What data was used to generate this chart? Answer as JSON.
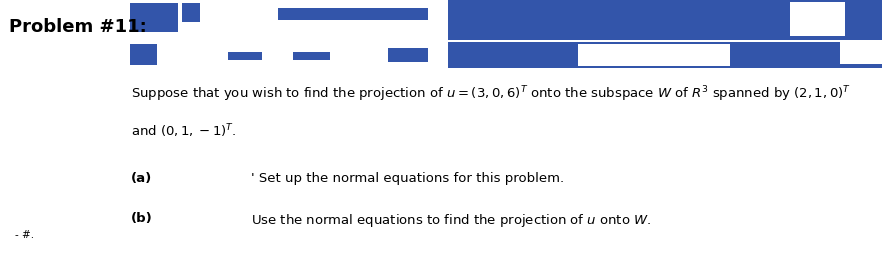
{
  "title": "Problem #11:",
  "background_color": "#ffffff",
  "header_bg_color": "#3355aa",
  "main_text_line1": "Suppose that you wish to find the projection of $u = (3,0,6)^T$ onto the subspace $W$ of $R^3$ spanned by $(2,1,0)^T$",
  "main_text_line2": "and $(0,1,-1)^T$.",
  "part_a_label": "(a)",
  "part_a_text": "' Set up the normal equations for this problem.",
  "part_b_label": "(b)",
  "part_b_text": "Use the normal equations to find the projection of $u$ onto $W$.",
  "footer_text": "- #.",
  "title_fontsize": 13,
  "body_fontsize": 9.5,
  "label_fontsize": 9.5,
  "title_color": "#000000",
  "body_color": "#000000",
  "fig_width": 8.82,
  "fig_height": 2.56,
  "dpi": 100
}
